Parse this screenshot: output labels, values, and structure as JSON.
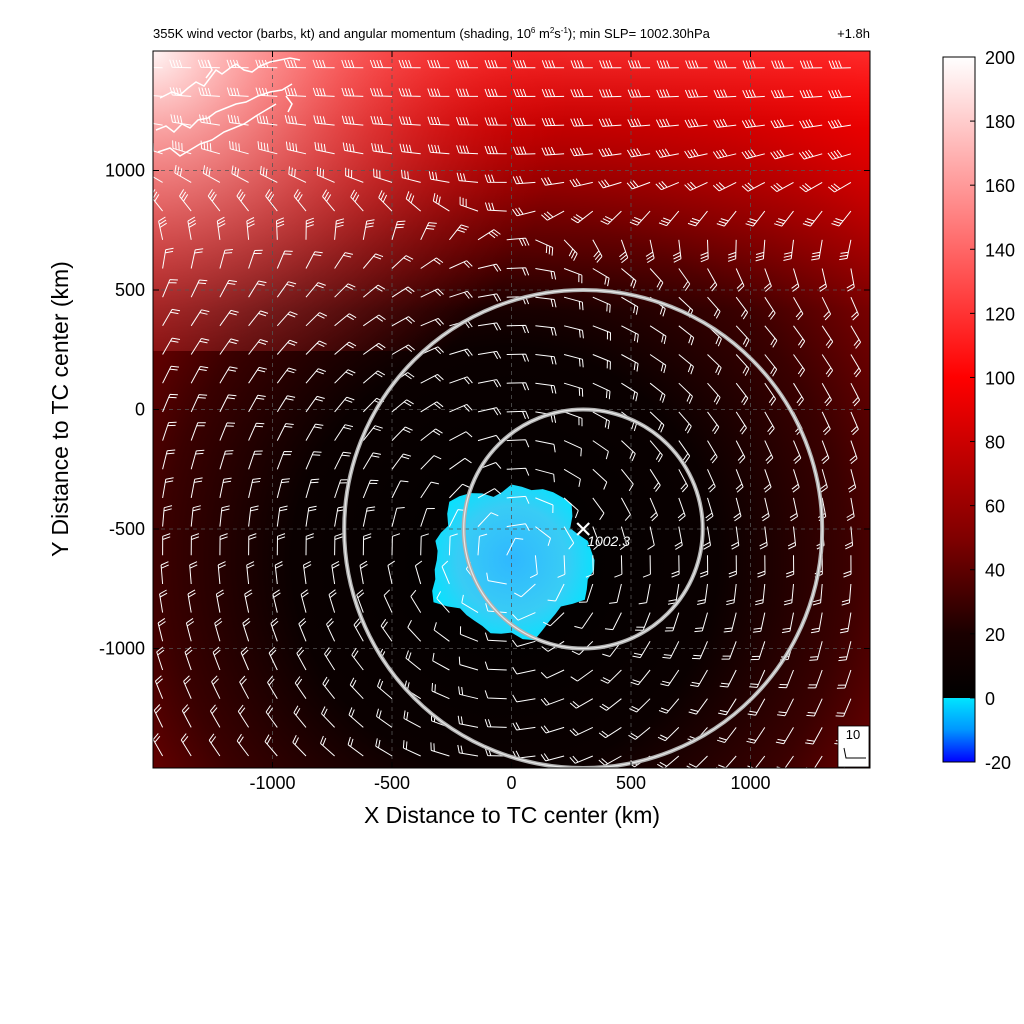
{
  "chart_data": {
    "type": "heatmap",
    "title": "355K wind vector (barbs, kt) and angular momentum (shading, 10",
    "title_sup1": "6",
    "title_mid1": " m",
    "title_sup2": "2",
    "title_mid2": "s",
    "title_sup3": "-1",
    "title_end": "); min SLP= 1002.30hPa",
    "forecast_time": "+1.8h",
    "xlabel": "X Distance to TC center (km)",
    "ylabel": "Y Distance to TC center (km)",
    "xlim": [
      -1500,
      1500
    ],
    "ylim": [
      -1500,
      1500
    ],
    "xticks": [
      -1000,
      -500,
      0,
      500,
      1000
    ],
    "yticks": [
      -1000,
      -500,
      0,
      500,
      1000
    ],
    "grid": true,
    "colorbar": {
      "range": [
        -20,
        200
      ],
      "ticks": [
        -20,
        0,
        20,
        40,
        60,
        80,
        100,
        120,
        140,
        160,
        180,
        200
      ],
      "stops": [
        {
          "v": -20,
          "c": "#0000ff"
        },
        {
          "v": -10,
          "c": "#0096ff"
        },
        {
          "v": 0,
          "c": "#00e5ff"
        },
        {
          "v": 0.01,
          "c": "#000000"
        },
        {
          "v": 20,
          "c": "#1a0000"
        },
        {
          "v": 50,
          "c": "#800000"
        },
        {
          "v": 100,
          "c": "#ff0000"
        },
        {
          "v": 150,
          "c": "#ff8080"
        },
        {
          "v": 200,
          "c": "#ffffff"
        }
      ]
    },
    "rings": [
      {
        "cx": 300,
        "cy": -500,
        "r": 1000
      },
      {
        "cx": 300,
        "cy": -500,
        "r": 500
      }
    ],
    "min_slp": {
      "x": 300,
      "y": -500,
      "label": "1002.3"
    },
    "negative_region": {
      "cx": 0,
      "cy": -630,
      "rx": 330,
      "ry": 310
    },
    "field_description": {
      "low_center": [
        0,
        -620
      ],
      "high_corner": [
        -1500,
        1500
      ]
    },
    "reference_barb": {
      "label": "10"
    }
  }
}
